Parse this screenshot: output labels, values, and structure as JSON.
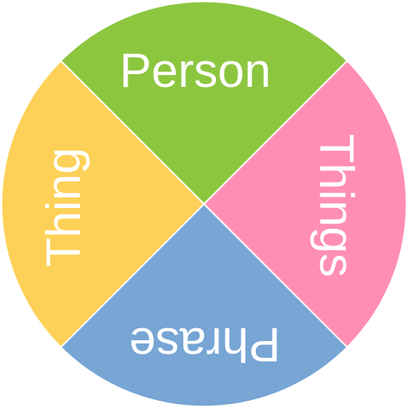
{
  "wheel": {
    "segments": [
      {
        "label": "Person",
        "color": "#8cc63f"
      },
      {
        "label": "Things",
        "color": "#ff8eb4"
      },
      {
        "label": "Phrase",
        "color": "#77a5d4"
      },
      {
        "label": "Thing",
        "color": "#fdd158"
      }
    ]
  }
}
